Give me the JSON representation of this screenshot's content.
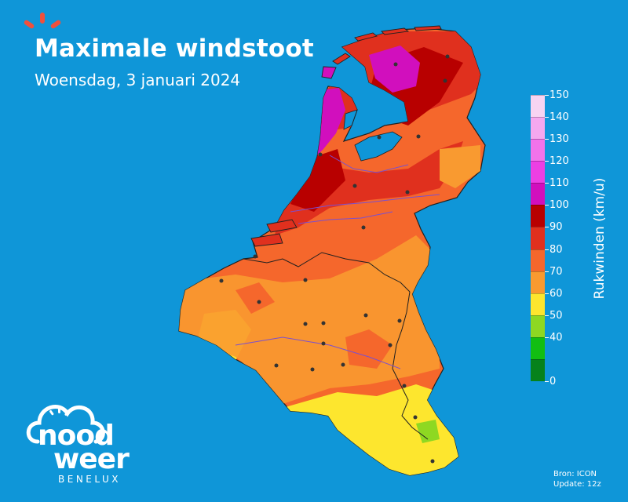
{
  "header": {
    "title": "Maximale windstoot",
    "subtitle": "Woensdag, 3 januari 2024"
  },
  "legend": {
    "title": "Rukwinden (km/u)",
    "ticks": [
      "150",
      "140",
      "130",
      "120",
      "110",
      "100",
      "90",
      "80",
      "70",
      "60",
      "50",
      "40",
      "0"
    ],
    "colors": [
      "#f7d4f2",
      "#f5a8ef",
      "#f273ea",
      "#ec3fe3",
      "#d10fbd",
      "#b80000",
      "#e0301e",
      "#f5672c",
      "#f99a30",
      "#fde62e",
      "#8ed822",
      "#12be12",
      "#06821c"
    ]
  },
  "source": {
    "line1": "Bron: ICON",
    "line2": "Update: 12z"
  },
  "logo": {
    "word1": "nood",
    "word2": "weer",
    "sub": "BENELUX",
    "accent_color": "#f0503c"
  },
  "map": {
    "region": "Benelux",
    "sea_color": "#0f96d8"
  }
}
